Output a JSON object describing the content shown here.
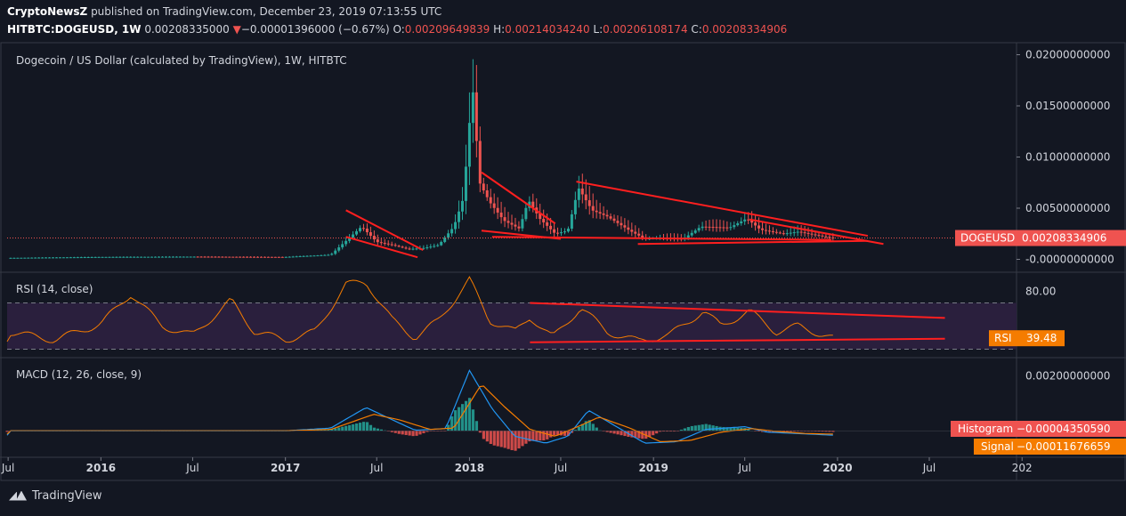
{
  "header": {
    "publisher": "CryptoNewsZ",
    "published_text": "published on TradingView.com, December 23, 2019 07:13:55 UTC",
    "symbol": "HITBTC:DOGEUSD, 1W",
    "last": "0.00208335000",
    "arrow": "▼",
    "change": "−0.00001396000 (−0.67%)",
    "o_label": "O:",
    "o_value": "0.00209649839",
    "h_label": "H:",
    "h_value": "0.00214034240",
    "l_label": "L:",
    "l_value": "0.00206108174",
    "c_label": "C:",
    "c_value": "0.00208334906"
  },
  "footer": {
    "brand": "TradingView"
  },
  "colors": {
    "background": "#131722",
    "up": "#26a69a",
    "down": "#ef5350",
    "trendline": "#ff1f1f",
    "rsi": "#f57c00",
    "macd": "#2196f3",
    "signal": "#f57c00",
    "rsi_band": "#2a1f3d"
  },
  "chart_data": [
    {
      "id": "price",
      "type": "candlestick",
      "title": "Dogecoin / US Dollar (calculated by TradingView), 1W, HITBTC",
      "ylim": [
        -0.001,
        0.021
      ],
      "y_ticks": [
        "0.02000000000",
        "0.01500000000",
        "0.01000000000",
        "0.00500000000",
        "-0.00000000000"
      ],
      "y_tick_values": [
        0.02,
        0.015,
        0.01,
        0.005,
        0.0
      ],
      "last_label": "DOGEUSD",
      "last_value_text": "0.00208334906",
      "last_value": 0.00208334906,
      "x_start": "2015-06-29",
      "x_end": "2020-12-21",
      "close_series": [
        [
          "2015-07-01",
          0.00014
        ],
        [
          "2016-01-01",
          0.00023
        ],
        [
          "2016-07-01",
          0.00026
        ],
        [
          "2017-01-01",
          0.00023
        ],
        [
          "2017-04-01",
          0.00045
        ],
        [
          "2017-05-01",
          0.0018
        ],
        [
          "2017-06-01",
          0.0032
        ],
        [
          "2017-07-01",
          0.0017
        ],
        [
          "2017-08-01",
          0.0014
        ],
        [
          "2017-09-01",
          0.001
        ],
        [
          "2017-10-01",
          0.0011
        ],
        [
          "2017-11-01",
          0.0014
        ],
        [
          "2017-12-01",
          0.0032
        ],
        [
          "2017-12-20",
          0.006
        ],
        [
          "2018-01-07",
          0.017
        ],
        [
          "2018-01-21",
          0.0075
        ],
        [
          "2018-02-10",
          0.0056
        ],
        [
          "2018-03-10",
          0.0038
        ],
        [
          "2018-04-10",
          0.003
        ],
        [
          "2018-04-28",
          0.0058
        ],
        [
          "2018-05-20",
          0.004
        ],
        [
          "2018-06-20",
          0.0025
        ],
        [
          "2018-07-15",
          0.0028
        ],
        [
          "2018-08-05",
          0.007
        ],
        [
          "2018-09-01",
          0.0048
        ],
        [
          "2018-10-01",
          0.0042
        ],
        [
          "2018-11-15",
          0.0028
        ],
        [
          "2018-12-15",
          0.002
        ],
        [
          "2019-01-15",
          0.0021
        ],
        [
          "2019-03-01",
          0.002
        ],
        [
          "2019-04-05",
          0.0032
        ],
        [
          "2019-06-01",
          0.0031
        ],
        [
          "2019-07-05",
          0.004
        ],
        [
          "2019-08-01",
          0.0029
        ],
        [
          "2019-09-15",
          0.0025
        ],
        [
          "2019-10-15",
          0.0027
        ],
        [
          "2019-11-15",
          0.0024
        ],
        [
          "2019-12-23",
          0.00208
        ]
      ],
      "trendlines": [
        {
          "from": [
            "2017-05-01",
            0.0048
          ],
          "to": [
            "2017-10-01",
            0.0009
          ]
        },
        {
          "from": [
            "2017-05-01",
            0.0022
          ],
          "to": [
            "2017-09-20",
            0.0002
          ]
        },
        {
          "from": [
            "2018-01-25",
            0.0085
          ],
          "to": [
            "2018-06-20",
            0.0035
          ]
        },
        {
          "from": [
            "2018-01-25",
            0.0028
          ],
          "to": [
            "2018-07-01",
            0.002
          ]
        },
        {
          "from": [
            "2018-08-01",
            0.0076
          ],
          "to": [
            "2020-03-01",
            0.0023
          ]
        },
        {
          "from": [
            "2018-12-01",
            0.0015
          ],
          "to": [
            "2020-03-01",
            0.0018
          ]
        },
        {
          "from": [
            "2019-07-10",
            0.0039
          ],
          "to": [
            "2020-04-01",
            0.0015
          ]
        },
        {
          "from": [
            "2018-02-15",
            0.0022
          ],
          "to": [
            "2019-12-20",
            0.0019
          ]
        }
      ]
    },
    {
      "id": "rsi",
      "type": "line",
      "title": "RSI (14, close)",
      "ylim": [
        25,
        95
      ],
      "y_ticks": [
        "80.00"
      ],
      "y_tick_values": [
        80
      ],
      "band": [
        70,
        30
      ],
      "last_label": "RSI",
      "last_value_text": "39.48",
      "last_value": 39.48,
      "series": [
        [
          "2015-07-01",
          45
        ],
        [
          "2015-10-01",
          38
        ],
        [
          "2016-01-01",
          52
        ],
        [
          "2016-03-01",
          78
        ],
        [
          "2016-05-01",
          50
        ],
        [
          "2016-07-01",
          42
        ],
        [
          "2016-09-15",
          72
        ],
        [
          "2016-11-01",
          45
        ],
        [
          "2017-01-01",
          38
        ],
        [
          "2017-03-01",
          45
        ],
        [
          "2017-05-01",
          86
        ],
        [
          "2017-06-10",
          88
        ],
        [
          "2017-08-01",
          55
        ],
        [
          "2017-09-15",
          40
        ],
        [
          "2017-11-01",
          55
        ],
        [
          "2018-01-01",
          90
        ],
        [
          "2018-02-10",
          55
        ],
        [
          "2018-04-01",
          45
        ],
        [
          "2018-05-01",
          58
        ],
        [
          "2018-06-15",
          40
        ],
        [
          "2018-08-10",
          66
        ],
        [
          "2018-10-01",
          45
        ],
        [
          "2018-12-01",
          37
        ],
        [
          "2019-02-01",
          42
        ],
        [
          "2019-04-10",
          63
        ],
        [
          "2019-05-15",
          50
        ],
        [
          "2019-07-10",
          63
        ],
        [
          "2019-09-01",
          45
        ],
        [
          "2019-10-15",
          50
        ],
        [
          "2019-12-23",
          39.48
        ]
      ],
      "trendlines": [
        {
          "from": [
            "2018-05-01",
            70
          ],
          "to": [
            "2020-08-01",
            57
          ]
        },
        {
          "from": [
            "2018-05-01",
            36
          ],
          "to": [
            "2020-08-01",
            39
          ]
        }
      ]
    },
    {
      "id": "macd",
      "type": "histogram+line",
      "title": "MACD (12, 26, close, 9)",
      "ylim": [
        -0.0009,
        0.0026
      ],
      "y_ticks": [
        "0.00200000000"
      ],
      "y_tick_values": [
        0.002
      ],
      "series": [
        {
          "name": "Histogram",
          "last_value_text": "−0.00004350590",
          "last_value": -4.35059e-05
        },
        {
          "name": "Signal",
          "last_value_text": "−0.00011676659",
          "last_value": -0.00011676659
        }
      ],
      "macd": [
        [
          "2015-07-01",
          0
        ],
        [
          "2017-01-01",
          0
        ],
        [
          "2017-04-01",
          0.0001
        ],
        [
          "2017-06-10",
          0.00085
        ],
        [
          "2017-08-01",
          0.0004
        ],
        [
          "2017-09-15",
          2e-05
        ],
        [
          "2017-11-15",
          8e-05
        ],
        [
          "2018-01-01",
          0.0022
        ],
        [
          "2018-02-15",
          0.0008
        ],
        [
          "2018-04-01",
          -0.0002
        ],
        [
          "2018-06-01",
          -0.00045
        ],
        [
          "2018-07-15",
          -0.0002
        ],
        [
          "2018-08-25",
          0.00075
        ],
        [
          "2018-10-15",
          0.0002
        ],
        [
          "2018-12-15",
          -0.00045
        ],
        [
          "2019-02-15",
          -0.0004
        ],
        [
          "2019-04-15",
          5e-05
        ],
        [
          "2019-07-01",
          0.00015
        ],
        [
          "2019-08-15",
          -5e-05
        ],
        [
          "2019-10-15",
          -0.0001
        ],
        [
          "2019-12-23",
          -0.00016
        ]
      ],
      "signal": [
        [
          "2015-07-01",
          0
        ],
        [
          "2017-01-01",
          0
        ],
        [
          "2017-04-01",
          5e-05
        ],
        [
          "2017-06-25",
          0.0006
        ],
        [
          "2017-08-15",
          0.0004
        ],
        [
          "2017-10-15",
          5e-05
        ],
        [
          "2017-12-01",
          0.0001
        ],
        [
          "2018-01-25",
          0.0017
        ],
        [
          "2018-03-10",
          0.0009
        ],
        [
          "2018-05-01",
          5e-05
        ],
        [
          "2018-06-20",
          -0.0002
        ],
        [
          "2018-08-10",
          0.0002
        ],
        [
          "2018-09-15",
          0.0005
        ],
        [
          "2018-11-15",
          0.0001
        ],
        [
          "2019-01-15",
          -0.0004
        ],
        [
          "2019-03-15",
          -0.00035
        ],
        [
          "2019-05-15",
          -5e-05
        ],
        [
          "2019-07-15",
          8e-05
        ],
        [
          "2019-09-01",
          -2e-05
        ],
        [
          "2019-11-01",
          -0.0001
        ],
        [
          "2019-12-23",
          -0.00012
        ]
      ]
    }
  ],
  "x_axis": {
    "ticks": [
      {
        "date": "2015-07-01",
        "label": "Jul"
      },
      {
        "date": "2016-01-01",
        "label": "2016"
      },
      {
        "date": "2016-07-01",
        "label": "Jul"
      },
      {
        "date": "2017-01-01",
        "label": "2017"
      },
      {
        "date": "2017-07-01",
        "label": "Jul"
      },
      {
        "date": "2018-01-01",
        "label": "2018"
      },
      {
        "date": "2018-07-01",
        "label": "Jul"
      },
      {
        "date": "2019-01-01",
        "label": "2019"
      },
      {
        "date": "2019-07-01",
        "label": "Jul"
      },
      {
        "date": "2020-01-01",
        "label": "2020"
      },
      {
        "date": "2020-07-01",
        "label": "Jul"
      },
      {
        "date": "2021-01-01",
        "label": "202"
      }
    ]
  }
}
